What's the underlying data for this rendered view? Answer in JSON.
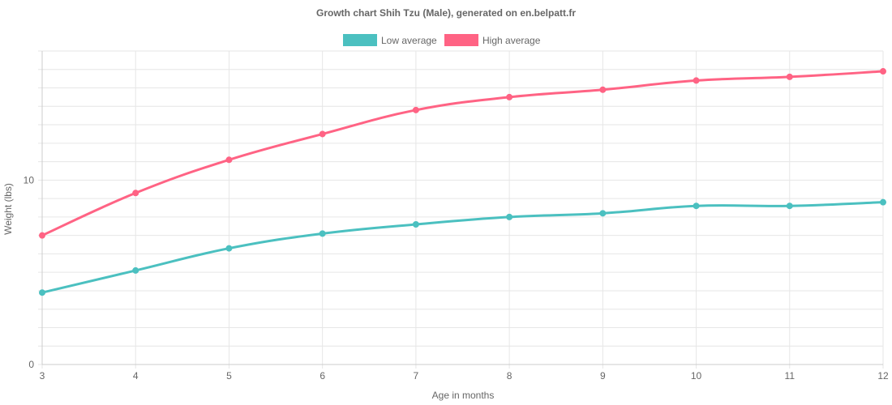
{
  "chart_data": {
    "type": "line",
    "title": "Growth chart Shih Tzu (Male), generated on en.belpatt.fr",
    "xlabel": "Age in months",
    "ylabel": "Weight (lbs)",
    "x": [
      3,
      4,
      5,
      6,
      7,
      8,
      9,
      10,
      11,
      12
    ],
    "y_ticks_labeled": [
      0,
      10
    ],
    "ylim": [
      0,
      17
    ],
    "grid": true,
    "legend_position": "top",
    "series": [
      {
        "name": "Low average",
        "color": "#4bc0c0",
        "values": [
          3.9,
          5.1,
          6.3,
          7.1,
          7.6,
          8.0,
          8.2,
          8.6,
          8.6,
          8.8
        ]
      },
      {
        "name": "High average",
        "color": "#ff6384",
        "values": [
          7.0,
          9.3,
          11.1,
          12.5,
          13.8,
          14.5,
          14.9,
          15.4,
          15.6,
          15.9
        ]
      }
    ]
  }
}
